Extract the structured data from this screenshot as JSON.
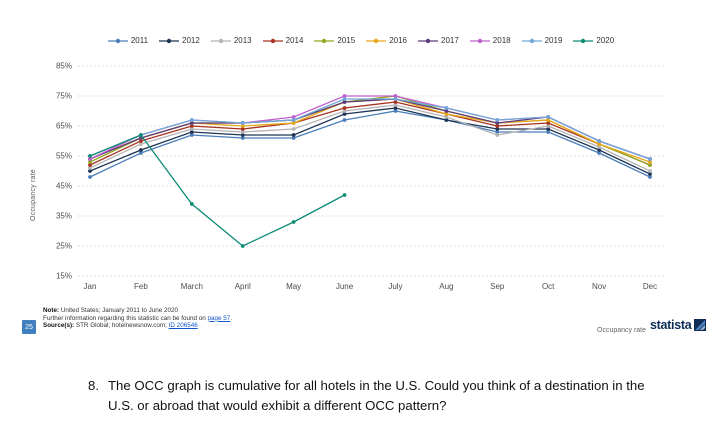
{
  "chart_data": {
    "type": "line",
    "categories": [
      "Jan",
      "Feb",
      "March",
      "April",
      "May",
      "June",
      "July",
      "Aug",
      "Sep",
      "Oct",
      "Nov",
      "Dec"
    ],
    "series": [
      {
        "name": "2011",
        "color": "#4a7ebb",
        "values": [
          48,
          56,
          62,
          61,
          61,
          67,
          70,
          67,
          63,
          63,
          56,
          48
        ]
      },
      {
        "name": "2012",
        "color": "#1f3555",
        "values": [
          50,
          57,
          63,
          62,
          62,
          69,
          71,
          67,
          64,
          64,
          57,
          49
        ]
      },
      {
        "name": "2013",
        "color": "#b5b5b5",
        "values": [
          51,
          59,
          64,
          63,
          64,
          70,
          72,
          68,
          62,
          65,
          58,
          50
        ]
      },
      {
        "name": "2014",
        "color": "#a8321f",
        "values": [
          52,
          60,
          65,
          64,
          66,
          71,
          73,
          69,
          65,
          66,
          59,
          52
        ]
      },
      {
        "name": "2015",
        "color": "#93a821",
        "values": [
          53,
          61,
          66,
          66,
          67,
          73,
          75,
          70,
          66,
          67,
          59,
          52
        ]
      },
      {
        "name": "2016",
        "color": "#e7a817",
        "values": [
          54,
          61,
          66,
          65,
          66,
          73,
          74,
          69,
          66,
          67,
          59,
          53
        ]
      },
      {
        "name": "2017",
        "color": "#5c3a7e",
        "values": [
          54,
          61,
          66,
          66,
          67,
          73,
          74,
          70,
          66,
          68,
          60,
          54
        ]
      },
      {
        "name": "2018",
        "color": "#c25fce",
        "values": [
          54,
          62,
          67,
          66,
          68,
          75,
          75,
          71,
          67,
          68,
          60,
          54
        ]
      },
      {
        "name": "2019",
        "color": "#6fa7d8",
        "values": [
          55,
          62,
          67,
          66,
          67,
          74,
          74,
          71,
          67,
          68,
          60,
          54
        ]
      },
      {
        "name": "2020",
        "color": "#0e8c76",
        "values": [
          55,
          62,
          39,
          25,
          33,
          42,
          null,
          null,
          null,
          null,
          null,
          null
        ]
      }
    ],
    "title": "",
    "xlabel": "",
    "ylabel": "Occupancy rate",
    "ylim": [
      15,
      85
    ],
    "yticks": [
      15,
      25,
      35,
      45,
      55,
      65,
      75,
      85
    ],
    "ytick_suffix": "%",
    "grid": "dotted-horizontal",
    "legend_position": "top"
  },
  "footer": {
    "page_number": "25",
    "note_label": "Note:",
    "note_text": " United States; January 2011 to June 2020",
    "further_prefix": "Further information regarding this statistic can be found on ",
    "further_link": "page 57",
    "further_suffix": ".",
    "source_label": "Source(s):",
    "source_text": " STR Global; hotelnewsnow.com; ",
    "source_link": "ID 206546",
    "right_label": "Occupancy rate",
    "brand": "statista"
  },
  "question": {
    "number": "8.",
    "text": "The OCC graph is cumulative for all hotels in the U.S. Could you think of a destination in the U.S. or abroad that would exhibit a different OCC pattern?"
  }
}
